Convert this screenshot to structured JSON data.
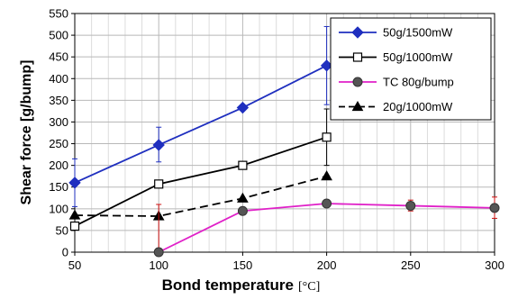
{
  "chart_data": {
    "type": "line",
    "title": "",
    "xlabel": "Bond temperature",
    "xlabel_unit": "[°C]",
    "ylabel": "Shear force [g/bump]",
    "xlim": [
      50,
      300
    ],
    "ylim": [
      0,
      550
    ],
    "x_ticks": [
      50,
      100,
      150,
      200,
      250,
      300
    ],
    "y_ticks": [
      0,
      50,
      100,
      150,
      200,
      250,
      300,
      350,
      400,
      450,
      500,
      550
    ],
    "grid": true,
    "legend_position": "top-right",
    "series": [
      {
        "name": "50g/1500mW",
        "color": "#1f2fbf",
        "marker": "filled-diamond",
        "line_style": "solid",
        "x": [
          50,
          100,
          150,
          200
        ],
        "y": [
          160,
          247,
          333,
          430
        ],
        "error": [
          [
            105,
            215
          ],
          [
            208,
            288
          ],
          null,
          [
            340,
            520
          ]
        ],
        "error_color": "#1f2fbf"
      },
      {
        "name": "50g/1000mW",
        "color": "#000000",
        "marker": "open-square",
        "line_style": "solid",
        "x": [
          50,
          100,
          150,
          200
        ],
        "y": [
          60,
          157,
          200,
          265
        ],
        "error": [
          null,
          null,
          null,
          [
            200,
            330
          ]
        ],
        "error_color": "#000000"
      },
      {
        "name": "TC 80g/bump",
        "color": "#e020c8",
        "marker": "filled-circle",
        "line_style": "solid",
        "x": [
          100,
          150,
          200,
          250,
          300
        ],
        "y": [
          0,
          95,
          112,
          107,
          102
        ],
        "error": [
          [
            0,
            110
          ],
          null,
          null,
          [
            95,
            120
          ],
          [
            78,
            127
          ]
        ],
        "error_color": "#cc1111"
      },
      {
        "name": "20g/1000mW",
        "color": "#000000",
        "marker": "filled-triangle",
        "line_style": "dashed",
        "x": [
          50,
          100,
          150,
          200
        ],
        "y": [
          85,
          83,
          124,
          175
        ],
        "error": [
          null,
          null,
          null,
          null
        ],
        "error_color": "#000000"
      }
    ]
  }
}
